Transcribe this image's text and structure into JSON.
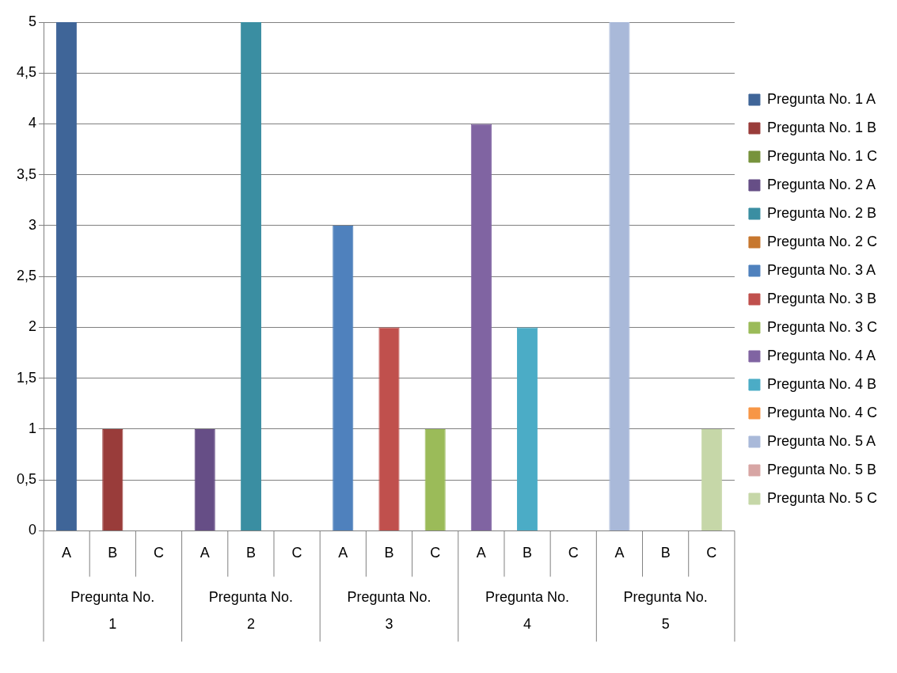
{
  "chart_data": {
    "type": "bar",
    "stacked": true,
    "categories": [
      "A",
      "B",
      "C",
      "A",
      "B",
      "C",
      "A",
      "B",
      "C",
      "A",
      "B",
      "C",
      "A",
      "B",
      "C"
    ],
    "annotations": [
      "Pregunta No. 1",
      "Pregunta No. 2",
      "Pregunta No. 3",
      "Pregunta No. 4",
      "Pregunta No. 5"
    ],
    "series": [
      {
        "name": "Pregunta No. 1 A",
        "color": "#3f6598",
        "values": [
          5,
          null,
          null,
          null,
          null,
          null,
          null,
          null,
          null,
          null,
          null,
          null,
          null,
          null,
          null
        ]
      },
      {
        "name": "Pregunta No. 1 B",
        "color": "#993c3a",
        "values": [
          null,
          1,
          null,
          null,
          null,
          null,
          null,
          null,
          null,
          null,
          null,
          null,
          null,
          null,
          null
        ]
      },
      {
        "name": "Pregunta No. 1 C",
        "color": "#77933c",
        "values": [
          null,
          null,
          0,
          null,
          null,
          null,
          null,
          null,
          null,
          null,
          null,
          null,
          null,
          null,
          null
        ]
      },
      {
        "name": "Pregunta No. 2 A",
        "color": "#664e86",
        "values": [
          null,
          null,
          null,
          1,
          null,
          null,
          null,
          null,
          null,
          null,
          null,
          null,
          null,
          null,
          null
        ]
      },
      {
        "name": "Pregunta No. 2 B",
        "color": "#3a8ea2",
        "values": [
          null,
          null,
          null,
          null,
          5,
          null,
          null,
          null,
          null,
          null,
          null,
          null,
          null,
          null,
          null
        ]
      },
      {
        "name": "Pregunta No. 2 C",
        "color": "#c7772e",
        "values": [
          null,
          null,
          null,
          null,
          null,
          0,
          null,
          null,
          null,
          null,
          null,
          null,
          null,
          null,
          null
        ]
      },
      {
        "name": "Pregunta No. 3 A",
        "color": "#4f81bd",
        "values": [
          null,
          null,
          null,
          null,
          null,
          null,
          3,
          null,
          null,
          null,
          null,
          null,
          null,
          null,
          null
        ]
      },
      {
        "name": "Pregunta No. 3 B",
        "color": "#c0504d",
        "values": [
          null,
          null,
          null,
          null,
          null,
          null,
          null,
          2,
          null,
          null,
          null,
          null,
          null,
          null,
          null
        ]
      },
      {
        "name": "Pregunta No. 3 C",
        "color": "#9bbb59",
        "values": [
          null,
          null,
          null,
          null,
          null,
          null,
          null,
          null,
          1,
          null,
          null,
          null,
          null,
          null,
          null
        ]
      },
      {
        "name": "Pregunta No. 4 A",
        "color": "#8064a2",
        "values": [
          null,
          null,
          null,
          null,
          null,
          null,
          null,
          null,
          null,
          4,
          null,
          null,
          null,
          null,
          null
        ]
      },
      {
        "name": "Pregunta No. 4 B",
        "color": "#4bacc6",
        "values": [
          null,
          null,
          null,
          null,
          null,
          null,
          null,
          null,
          null,
          null,
          2,
          null,
          null,
          null,
          null
        ]
      },
      {
        "name": "Pregunta No. 4 C",
        "color": "#f79646",
        "values": [
          null,
          null,
          null,
          null,
          null,
          null,
          null,
          null,
          null,
          null,
          null,
          0,
          null,
          null,
          null
        ]
      },
      {
        "name": "Pregunta No. 5 A",
        "color": "#a9b9d9",
        "values": [
          null,
          null,
          null,
          null,
          null,
          null,
          null,
          null,
          null,
          null,
          null,
          null,
          5,
          null,
          null
        ]
      },
      {
        "name": "Pregunta No. 5 B",
        "color": "#d7a5a4",
        "values": [
          null,
          null,
          null,
          null,
          null,
          null,
          null,
          null,
          null,
          null,
          null,
          null,
          null,
          0,
          null
        ]
      },
      {
        "name": "Pregunta No. 5 C",
        "color": "#c6d7a8",
        "values": [
          null,
          null,
          null,
          null,
          null,
          null,
          null,
          null,
          null,
          null,
          null,
          null,
          null,
          null,
          1
        ]
      }
    ],
    "ylim": [
      0,
      5
    ],
    "yticks": [
      0,
      {
        "value": 0.5,
        "label": "0,5"
      },
      1,
      {
        "value": 1.5,
        "label": "1,5"
      },
      2,
      {
        "value": 2.5,
        "label": "2,5"
      },
      3,
      {
        "value": 3.5,
        "label": "3,5"
      },
      4,
      {
        "value": 4.5,
        "label": "4,5"
      },
      5
    ],
    "grid": "y",
    "legend": "right"
  }
}
